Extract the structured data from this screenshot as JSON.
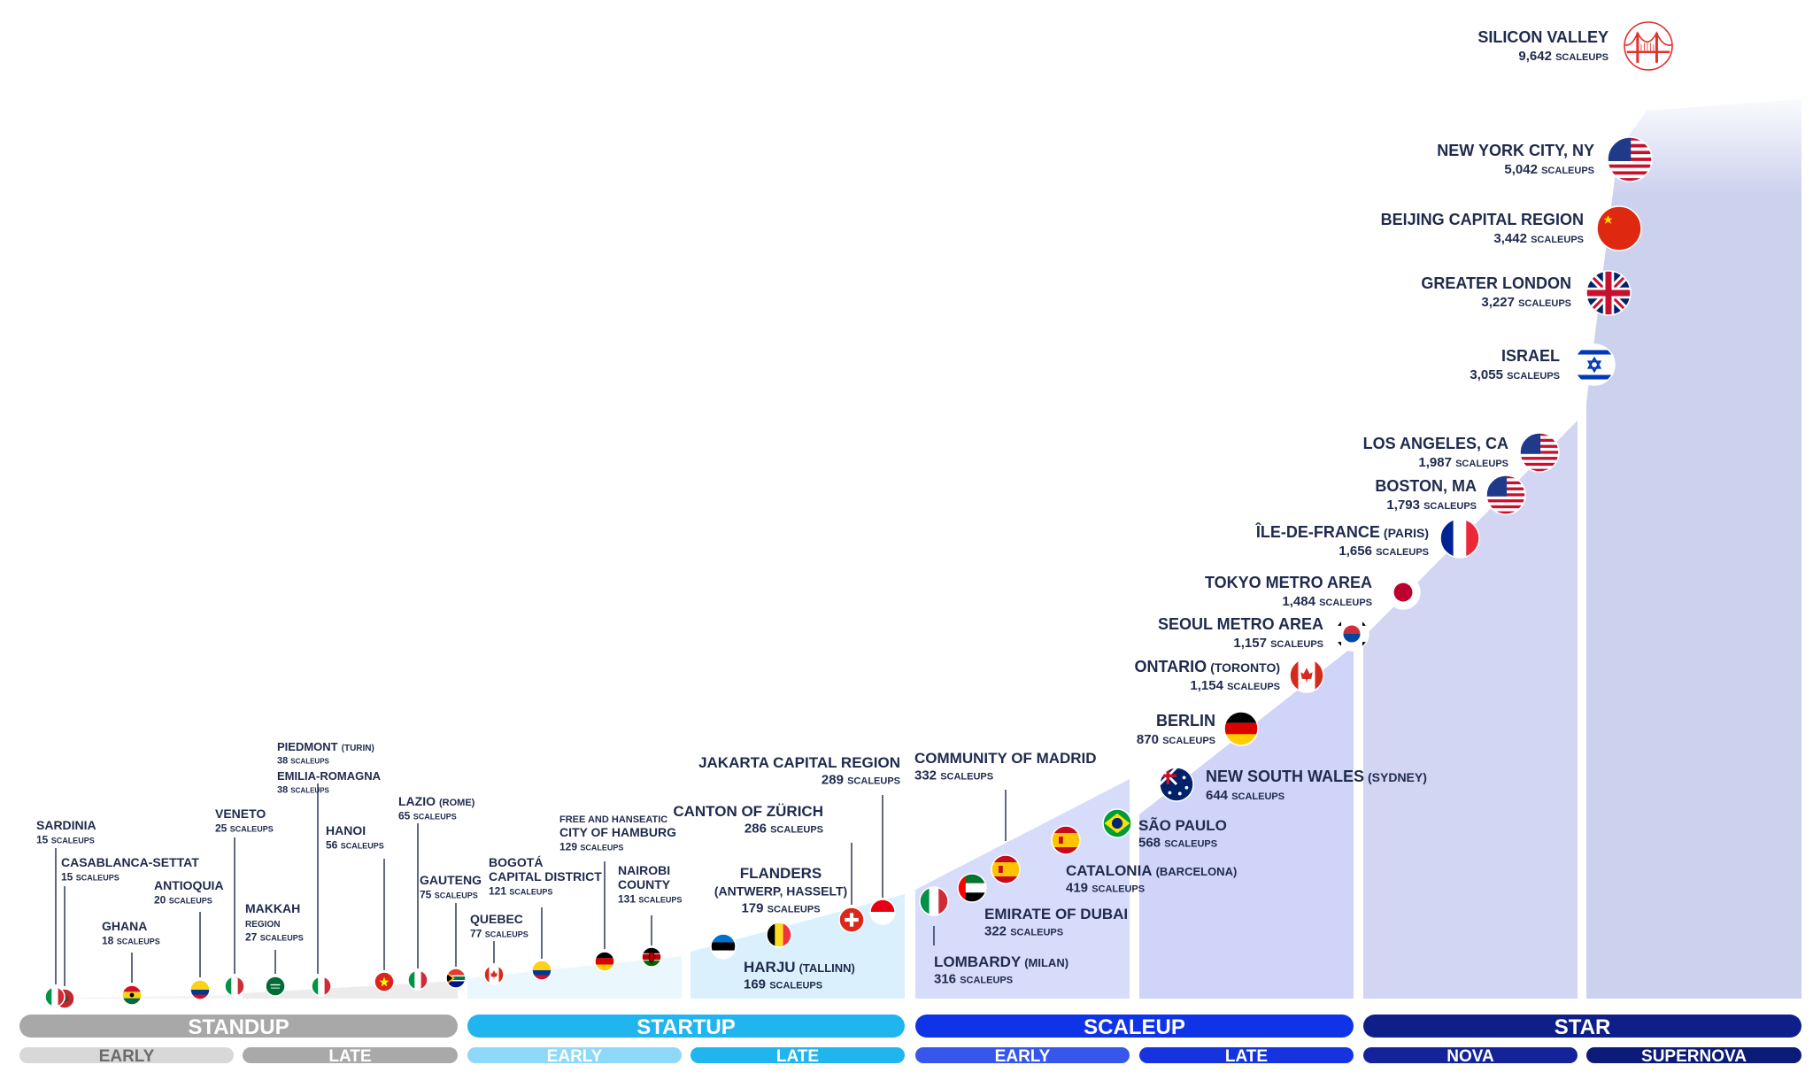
{
  "chart_data": {
    "type": "scatter",
    "title": "",
    "unit_label": "SCALEUPS",
    "stages": [
      {
        "key": "standup",
        "name": "STANDUP",
        "color": "#a8a8a8",
        "subs": [
          {
            "name": "EARLY",
            "color": "#d8d8d8",
            "text": "#6b6b6b",
            "fill": "#f4f4f4"
          },
          {
            "name": "LATE",
            "color": "#a9a9a9",
            "text": "#ffffff",
            "fill": "#ececec"
          }
        ]
      },
      {
        "key": "startup",
        "name": "STARTUP",
        "color": "#21b5f0",
        "subs": [
          {
            "name": "EARLY",
            "color": "#8ed8fa",
            "text": "#ffffff",
            "fill": "#eaf7fd"
          },
          {
            "name": "LATE",
            "color": "#21b5f0",
            "text": "#ffffff",
            "fill": "#daf1fd"
          }
        ]
      },
      {
        "key": "scaleup",
        "name": "SCALEUP",
        "color": "#0f34e8",
        "subs": [
          {
            "name": "EARLY",
            "color": "#3656ec",
            "text": "#ffffff",
            "fill": "#d7dcfa"
          },
          {
            "name": "LATE",
            "color": "#1534e0",
            "text": "#ffffff",
            "fill": "#cfd4f8"
          }
        ]
      },
      {
        "key": "star",
        "name": "STAR",
        "color": "#0f1f8a",
        "subs": [
          {
            "name": "NOVA",
            "color": "#14239a",
            "text": "#ffffff",
            "fill": "#d2d6f3"
          },
          {
            "name": "SUPERNOVA",
            "color": "#0c1a78",
            "text": "#ffffff",
            "fill": "#ccd1ee"
          }
        ]
      }
    ],
    "points": [
      {
        "name": "SILICON VALLEY",
        "value": "9,642",
        "flag": "golden-gate"
      },
      {
        "name": "NEW YORK CITY, NY",
        "value": "5,042",
        "flag": "us"
      },
      {
        "name": "BEIJING CAPITAL REGION",
        "value": "3,442",
        "flag": "cn"
      },
      {
        "name": "GREATER LONDON",
        "value": "3,227",
        "flag": "gb"
      },
      {
        "name": "ISRAEL",
        "value": "3,055",
        "flag": "il"
      },
      {
        "name": "LOS ANGELES, CA",
        "value": "1,987",
        "flag": "us"
      },
      {
        "name": "BOSTON, MA",
        "value": "1,793",
        "flag": "us"
      },
      {
        "name": "ÎLE-DE-FRANCE",
        "sub": "(PARIS)",
        "value": "1,656",
        "flag": "fr"
      },
      {
        "name": "TOKYO METRO AREA",
        "value": "1,484",
        "flag": "jp"
      },
      {
        "name": "SEOUL METRO AREA",
        "value": "1,157",
        "flag": "kr"
      },
      {
        "name": "ONTARIO",
        "sub": "(TORONTO)",
        "value": "1,154",
        "flag": "ca"
      },
      {
        "name": "BERLIN",
        "value": "870",
        "flag": "de"
      },
      {
        "name": "NEW SOUTH WALES",
        "sub": "(SYDNEY)",
        "value": "644",
        "flag": "au"
      },
      {
        "name": "SÃO PAULO",
        "value": "568",
        "flag": "br"
      },
      {
        "name": "CATALONIA",
        "sub": "(BARCELONA)",
        "value": "419",
        "flag": "es"
      },
      {
        "name": "COMMUNITY OF MADRID",
        "value": "332",
        "flag": "es"
      },
      {
        "name": "EMIRATE OF DUBAI",
        "value": "322",
        "flag": "ae"
      },
      {
        "name": "LOMBARDY",
        "sub": "(MILAN)",
        "value": "316",
        "flag": "it"
      },
      {
        "name": "JAKARTA CAPITAL REGION",
        "value": "289",
        "flag": "id"
      },
      {
        "name": "CANTON OF ZÜRICH",
        "value": "286",
        "flag": "ch"
      },
      {
        "name": "FLANDERS",
        "sub2": "(ANTWERP, HASSELT)",
        "value": "179",
        "flag": "be"
      },
      {
        "name": "HARJU",
        "sub": "(TALLINN)",
        "value": "169",
        "flag": "ee"
      },
      {
        "name": "NAIROBI",
        "name2": "COUNTY",
        "value": "131",
        "flag": "ke"
      },
      {
        "name": "CITY OF HAMBURG",
        "pre": "FREE AND HANSEATIC",
        "value": "129",
        "flag": "de"
      },
      {
        "name": "BOGOTÁ",
        "name2": "CAPITAL DISTRICT",
        "value": "121",
        "flag": "co"
      },
      {
        "name": "QUEBEC",
        "value": "77",
        "flag": "ca"
      },
      {
        "name": "GAUTENG",
        "value": "75",
        "flag": "za"
      },
      {
        "name": "LAZIO",
        "sub": "(ROME)",
        "value": "65",
        "flag": "it"
      },
      {
        "name": "HANOI",
        "value": "56",
        "flag": "vn"
      },
      {
        "name": "PIEDMONT",
        "sub": "(TURIN)",
        "value": "38",
        "flag": "it"
      },
      {
        "name": "EMILIA-ROMAGNA",
        "value": "38",
        "flag": "it"
      },
      {
        "name": "MAKKAH",
        "name2": "REGION",
        "value": "27",
        "flag": "sa"
      },
      {
        "name": "VENETO",
        "value": "25",
        "flag": "it"
      },
      {
        "name": "ANTIOQUIA",
        "value": "20",
        "flag": "co"
      },
      {
        "name": "GHANA",
        "value": "18",
        "flag": "gh"
      },
      {
        "name": "CASABLANCA-SETTAT",
        "value": "15",
        "flag": "ma"
      },
      {
        "name": "SARDINIA",
        "value": "15",
        "flag": "it"
      }
    ]
  }
}
